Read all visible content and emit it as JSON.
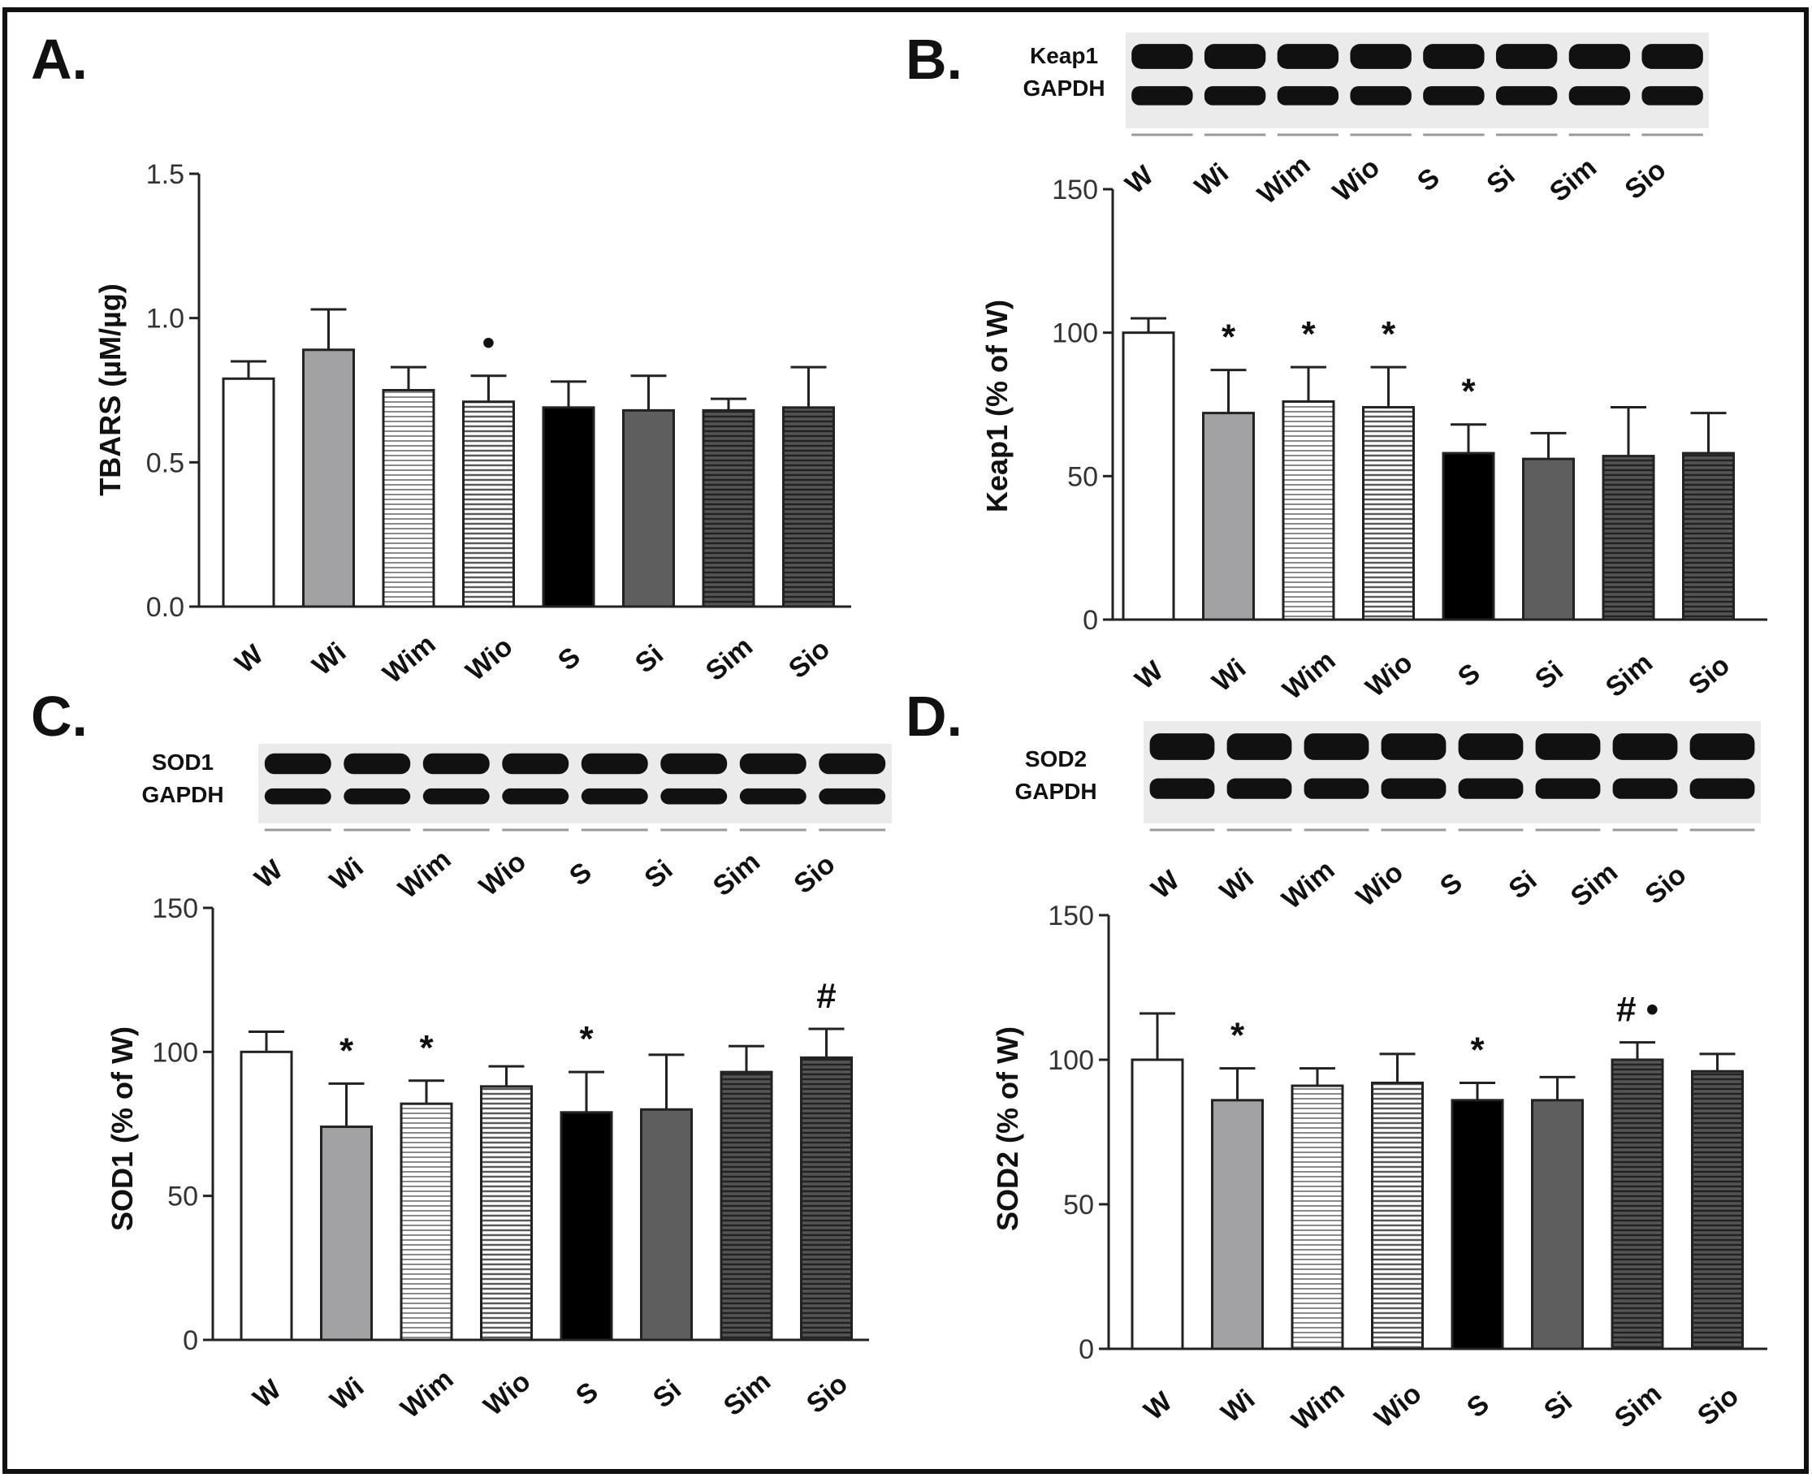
{
  "chart_data": [
    {
      "panel": "A.",
      "type": "bar",
      "categories": [
        "W",
        "Wi",
        "Wim",
        "Wio",
        "S",
        "Si",
        "Sim",
        "Sio"
      ],
      "values": [
        0.79,
        0.89,
        0.75,
        0.71,
        0.69,
        0.68,
        0.68,
        0.69
      ],
      "errors": [
        0.06,
        0.14,
        0.08,
        0.09,
        0.09,
        0.12,
        0.04,
        0.14
      ],
      "annotations": [
        "",
        "",
        "",
        "•",
        "",
        "",
        "",
        ""
      ],
      "ylabel": "TBARS (µM/µg)",
      "ylim": [
        0,
        1.5
      ],
      "yticks": [
        "0.0",
        "0.5",
        "1.0",
        "1.5"
      ]
    },
    {
      "panel": "B.",
      "type": "bar",
      "categories": [
        "W",
        "Wi",
        "Wim",
        "Wio",
        "S",
        "Si",
        "Sim",
        "Sio"
      ],
      "values": [
        100,
        72,
        76,
        74,
        58,
        56,
        57,
        58
      ],
      "errors": [
        5,
        15,
        12,
        14,
        10,
        9,
        17,
        14
      ],
      "annotations": [
        "",
        "*",
        "*",
        "*",
        "*",
        "",
        "",
        ""
      ],
      "ylabel": "Keap1 (% of W)",
      "ylim": [
        0,
        150
      ],
      "yticks": [
        "0",
        "50",
        "100",
        "150"
      ],
      "blot": {
        "labels": [
          "Keap1",
          "GAPDH"
        ],
        "lanes": [
          "W",
          "Wi",
          "Wim",
          "Wio",
          "S",
          "Si",
          "Sim",
          "Sio"
        ]
      }
    },
    {
      "panel": "C.",
      "type": "bar",
      "categories": [
        "W",
        "Wi",
        "Wim",
        "Wio",
        "S",
        "Si",
        "Sim",
        "Sio"
      ],
      "values": [
        100,
        74,
        82,
        88,
        79,
        80,
        93,
        98
      ],
      "errors": [
        7,
        15,
        8,
        7,
        14,
        19,
        9,
        10
      ],
      "annotations": [
        "",
        "*",
        "*",
        "",
        "*",
        "",
        "",
        "#"
      ],
      "ylabel": "SOD1 (% of W)",
      "ylim": [
        0,
        150
      ],
      "yticks": [
        "0",
        "50",
        "100",
        "150"
      ],
      "blot": {
        "labels": [
          "SOD1",
          "GAPDH"
        ],
        "lanes": [
          "W",
          "Wi",
          "Wim",
          "Wio",
          "S",
          "Si",
          "Sim",
          "Sio"
        ]
      }
    },
    {
      "panel": "D.",
      "type": "bar",
      "categories": [
        "W",
        "Wi",
        "Wim",
        "Wio",
        "S",
        "Si",
        "Sim",
        "Sio"
      ],
      "values": [
        100,
        86,
        91,
        92,
        86,
        86,
        100,
        96
      ],
      "errors": [
        16,
        11,
        6,
        10,
        6,
        8,
        6,
        6
      ],
      "annotations": [
        "",
        "*",
        "",
        "",
        "*",
        "",
        "# •",
        ""
      ],
      "ylabel": "SOD2 (% of W)",
      "ylim": [
        0,
        150
      ],
      "yticks": [
        "0",
        "50",
        "100",
        "150"
      ],
      "blot": {
        "labels": [
          "SOD2",
          "GAPDH"
        ],
        "lanes": [
          "W",
          "Wi",
          "Wim",
          "Wio",
          "S",
          "Si",
          "Sim",
          "Sio"
        ]
      }
    }
  ]
}
